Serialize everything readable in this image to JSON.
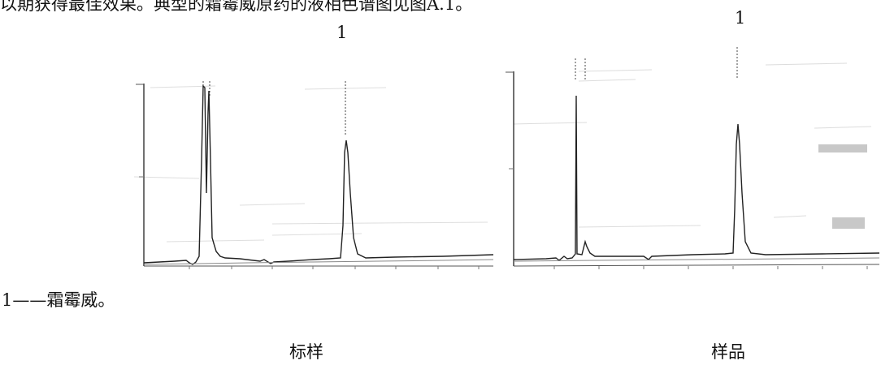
{
  "intro_text": "以期获得最佳效果。典型的霜霉威原药的液相色谱图见图A.1。",
  "chromatograms": [
    {
      "peak_label": "1",
      "caption": "标样"
    },
    {
      "peak_label": "1",
      "caption": "样品"
    }
  ],
  "legend": "1——霜霉威。"
}
